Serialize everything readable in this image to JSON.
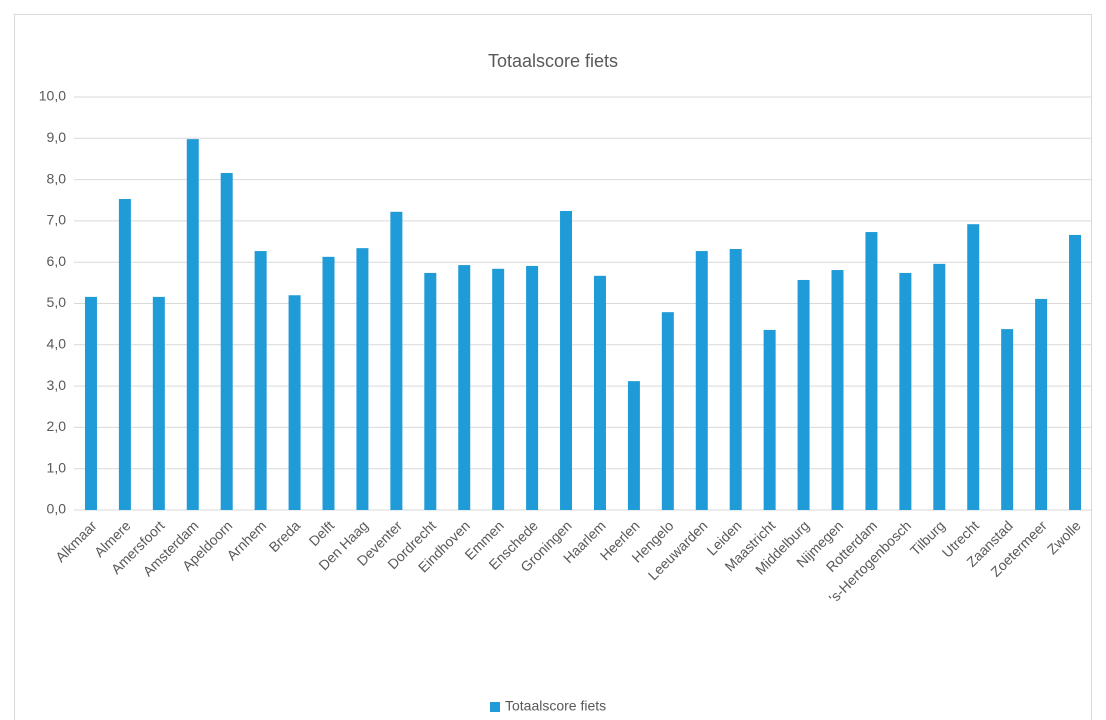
{
  "chart_data": {
    "type": "bar",
    "title": "Totaalscore fiets",
    "categories": [
      "Alkmaar",
      "Almere",
      "Amersfoort",
      "Amsterdam",
      "Apeldoorn",
      "Arnhem",
      "Breda",
      "Delft",
      "Den Haag",
      "Deventer",
      "Dordrecht",
      "Eindhoven",
      "Emmen",
      "Enschede",
      "Groningen",
      "Haarlem",
      "Heerlen",
      "Hengelo",
      "Leeuwarden",
      "Leiden",
      "Maastricht",
      "Middelburg",
      "Nijmegen",
      "Rotterdam",
      "'s-Hertogenbosch",
      "Tilburg",
      "Utrecht",
      "Zaanstad",
      "Zoetermeer",
      "Zwolle"
    ],
    "series": [
      {
        "name": "Totaalscore fiets",
        "color": "#1f9bd7",
        "values": [
          5.16,
          7.53,
          5.16,
          8.98,
          8.16,
          6.27,
          5.2,
          6.13,
          6.34,
          7.22,
          5.74,
          5.93,
          5.84,
          5.91,
          7.24,
          5.67,
          3.12,
          4.79,
          6.27,
          6.32,
          4.36,
          5.57,
          5.81,
          6.73,
          5.74,
          5.96,
          6.92,
          4.38,
          5.11,
          6.66
        ]
      }
    ],
    "ylim": [
      0,
      10
    ],
    "yticks": [
      {
        "value": 0,
        "label": "0,0"
      },
      {
        "value": 1,
        "label": "1,0"
      },
      {
        "value": 2,
        "label": "2,0"
      },
      {
        "value": 3,
        "label": "3,0"
      },
      {
        "value": 4,
        "label": "4,0"
      },
      {
        "value": 5,
        "label": "5,0"
      },
      {
        "value": 6,
        "label": "6,0"
      },
      {
        "value": 7,
        "label": "7,0"
      },
      {
        "value": 8,
        "label": "8,0"
      },
      {
        "value": 9,
        "label": "9,0"
      },
      {
        "value": 10,
        "label": "10,0"
      }
    ],
    "grid": true,
    "legend": "bottom"
  }
}
